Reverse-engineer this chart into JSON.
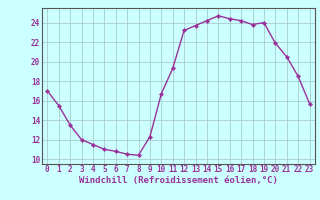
{
  "x": [
    0,
    1,
    2,
    3,
    4,
    5,
    6,
    7,
    8,
    9,
    10,
    11,
    12,
    13,
    14,
    15,
    16,
    17,
    18,
    19,
    20,
    21,
    22,
    23
  ],
  "y": [
    17.0,
    15.5,
    13.5,
    12.0,
    11.5,
    11.0,
    10.8,
    10.5,
    10.4,
    12.3,
    16.7,
    19.3,
    23.2,
    23.7,
    24.2,
    24.7,
    24.4,
    24.2,
    23.8,
    24.0,
    21.9,
    20.5,
    18.5,
    15.7
  ],
  "line_color": "#993399",
  "marker": "D",
  "marker_size": 2.2,
  "line_width": 1.0,
  "bg_color": "#ccffff",
  "grid_color": "#aacccc",
  "xlabel": "Windchill (Refroidissement éolien,°C)",
  "xlabel_fontsize": 6.5,
  "ylim": [
    9.5,
    25.5
  ],
  "ytick_vals": [
    10,
    12,
    14,
    16,
    18,
    20,
    22,
    24
  ],
  "ytick_labels": [
    "10",
    "12",
    "14",
    "16",
    "18",
    "20",
    "22",
    "24"
  ],
  "xtick_vals": [
    0,
    1,
    2,
    3,
    4,
    5,
    6,
    7,
    8,
    9,
    10,
    11,
    12,
    13,
    14,
    15,
    16,
    17,
    18,
    19,
    20,
    21,
    22,
    23
  ],
  "xtick_labels": [
    "0",
    "1",
    "2",
    "3",
    "4",
    "5",
    "6",
    "7",
    "8",
    "9",
    "10",
    "11",
    "12",
    "13",
    "14",
    "15",
    "16",
    "17",
    "18",
    "19",
    "20",
    "21",
    "22",
    "23"
  ],
  "tick_fontsize": 5.5,
  "spine_color": "#555555"
}
